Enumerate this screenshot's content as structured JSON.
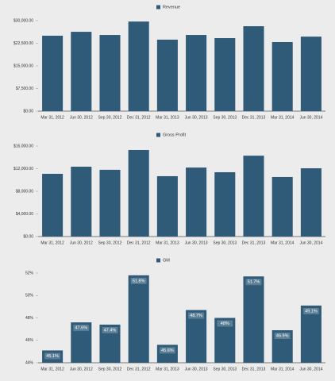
{
  "chart_data": [
    {
      "type": "bar",
      "categories": [
        "Mar 31, 2012",
        "Jun 30, 2012",
        "Sep 30, 2012",
        "Dec 31, 2012",
        "Mar 31, 2013",
        "Jun 30, 2013",
        "Sep 30, 2013",
        "Dec 31, 2013",
        "Mar 31, 2014",
        "Jun 30, 2014"
      ],
      "series": [
        {
          "name": "Revenue",
          "color": "#2f5b78",
          "values": [
            25000,
            26300,
            25250,
            29700,
            23700,
            25250,
            24200,
            28150,
            22900,
            24700
          ]
        }
      ],
      "ylim": [
        0,
        30000
      ],
      "yticks": [
        {
          "value": 0,
          "label": "$0.00"
        },
        {
          "value": 7500,
          "label": "$7,500.00"
        },
        {
          "value": 15000,
          "label": "$15,000.00"
        },
        {
          "value": 22500,
          "label": "$22,500.00"
        },
        {
          "value": 30000,
          "label": "$30,000.00"
        }
      ]
    },
    {
      "type": "bar",
      "categories": [
        "Mar 31, 2012",
        "Jun 30, 2012",
        "Sep 30, 2012",
        "Dec 31, 2012",
        "Mar 31, 2013",
        "Jun 30, 2013",
        "Sep 30, 2013",
        "Dec 31, 2013",
        "Mar 31, 2014",
        "Jun 30, 2014"
      ],
      "series": [
        {
          "name": "Gross Profit",
          "color": "#2f5b78",
          "values": [
            11090,
            12350,
            11800,
            15300,
            10670,
            12200,
            11370,
            14300,
            10530,
            12070
          ]
        }
      ],
      "ylim": [
        0,
        16000
      ],
      "yticks": [
        {
          "value": 0,
          "label": "$0.00"
        },
        {
          "value": 4000,
          "label": "$4,000.00"
        },
        {
          "value": 8000,
          "label": "$8,000.00"
        },
        {
          "value": 12000,
          "label": "$12,000.00"
        },
        {
          "value": 16000,
          "label": "$16,000.00"
        }
      ]
    },
    {
      "type": "bar",
      "categories": [
        "Mar 31, 2012",
        "Jun 30, 2012",
        "Sep 30, 2012",
        "Dec 31, 2012",
        "Mar 31, 2013",
        "Jun 30, 2013",
        "Sep 30, 2013",
        "Dec 31, 2013",
        "Mar 31, 2014",
        "Jun 30, 2014"
      ],
      "series": [
        {
          "name": "GM",
          "color": "#2f5b78",
          "values": [
            45.1,
            47.6,
            47.4,
            51.8,
            45.6,
            48.7,
            48,
            51.7,
            46.9,
            49.1
          ],
          "value_labels": [
            "45.1%",
            "47.6%",
            "47.4%",
            "51.8%",
            "45.6%",
            "48.7%",
            "48%",
            "51.7%",
            "46.9%",
            "49.1%"
          ]
        }
      ],
      "ylim": [
        44,
        52
      ],
      "yticks": [
        {
          "value": 44,
          "label": "44%"
        },
        {
          "value": 46,
          "label": "46%"
        },
        {
          "value": 48,
          "label": "48%"
        },
        {
          "value": 50,
          "label": "50%"
        },
        {
          "value": 52,
          "label": "52%"
        }
      ]
    }
  ]
}
